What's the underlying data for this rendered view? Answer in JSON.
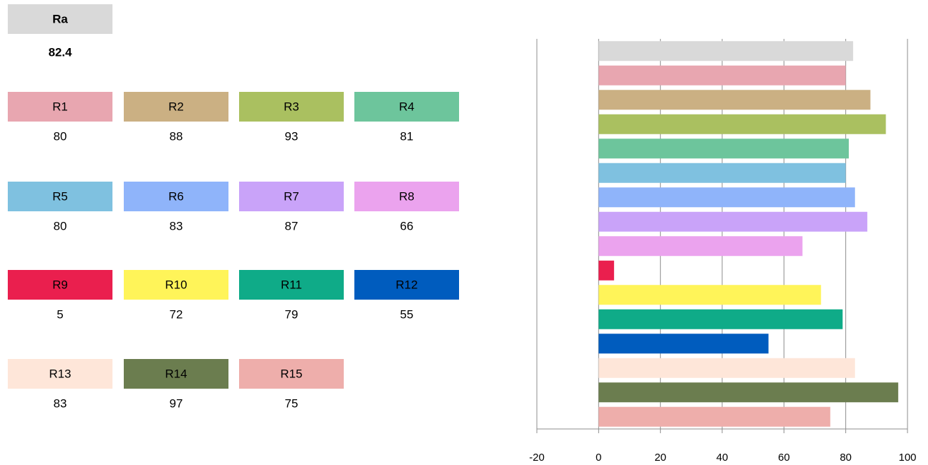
{
  "chart_data": {
    "type": "bar",
    "orientation": "horizontal",
    "categories": [
      "Ra",
      "R1",
      "R2",
      "R3",
      "R4",
      "R5",
      "R6",
      "R7",
      "R8",
      "R9",
      "R10",
      "R11",
      "R12",
      "R13",
      "R14",
      "R15"
    ],
    "values": [
      82.4,
      80,
      88,
      93,
      81,
      80,
      83,
      87,
      66,
      5,
      72,
      79,
      55,
      83,
      97,
      75
    ],
    "colors": [
      "#d9d9d9",
      "#e8a6b0",
      "#cbb083",
      "#aac060",
      "#6dc59c",
      "#7fc1e0",
      "#8fb4fa",
      "#c9a3f9",
      "#eba3ee",
      "#ea1f4e",
      "#fff459",
      "#0fab88",
      "#005cbe",
      "#fee6d9",
      "#6b7d4f",
      "#eeaeab"
    ],
    "xlim": [
      -20,
      100
    ],
    "xticks": [
      -20,
      0,
      20,
      40,
      60,
      80,
      100
    ],
    "grid": true
  }
}
